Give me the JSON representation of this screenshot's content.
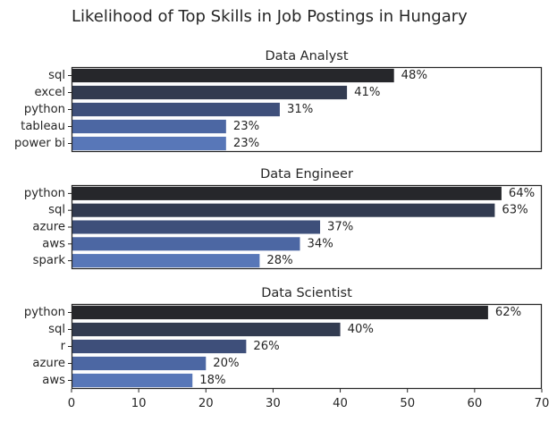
{
  "chart_data": {
    "type": "bar",
    "orientation": "horizontal",
    "title": "Likelihood of Top Skills in Job Postings in Hungary",
    "xlim": [
      0,
      70
    ],
    "xticks": [
      0,
      10,
      20,
      30,
      40,
      50,
      60,
      70
    ],
    "value_suffix": "%",
    "grid": false,
    "shared_x_axis": true,
    "panels": [
      {
        "title": "Data Analyst",
        "categories": [
          "sql",
          "excel",
          "python",
          "tableau",
          "power bi"
        ],
        "values": [
          48,
          41,
          31,
          23,
          23
        ],
        "labels": [
          "48%",
          "41%",
          "31%",
          "23%",
          "23%"
        ]
      },
      {
        "title": "Data Engineer",
        "categories": [
          "python",
          "sql",
          "azure",
          "aws",
          "spark"
        ],
        "values": [
          64,
          63,
          37,
          34,
          28
        ],
        "labels": [
          "64%",
          "63%",
          "37%",
          "34%",
          "28%"
        ]
      },
      {
        "title": "Data Scientist",
        "categories": [
          "python",
          "sql",
          "r",
          "azure",
          "aws"
        ],
        "values": [
          62,
          40,
          26,
          20,
          18
        ],
        "labels": [
          "62%",
          "40%",
          "26%",
          "20%",
          "18%"
        ]
      }
    ],
    "palette": [
      "#26272b",
      "#323b50",
      "#3e4f7a",
      "#4c67a3",
      "#5877b8"
    ],
    "axis_color": "#262626"
  }
}
